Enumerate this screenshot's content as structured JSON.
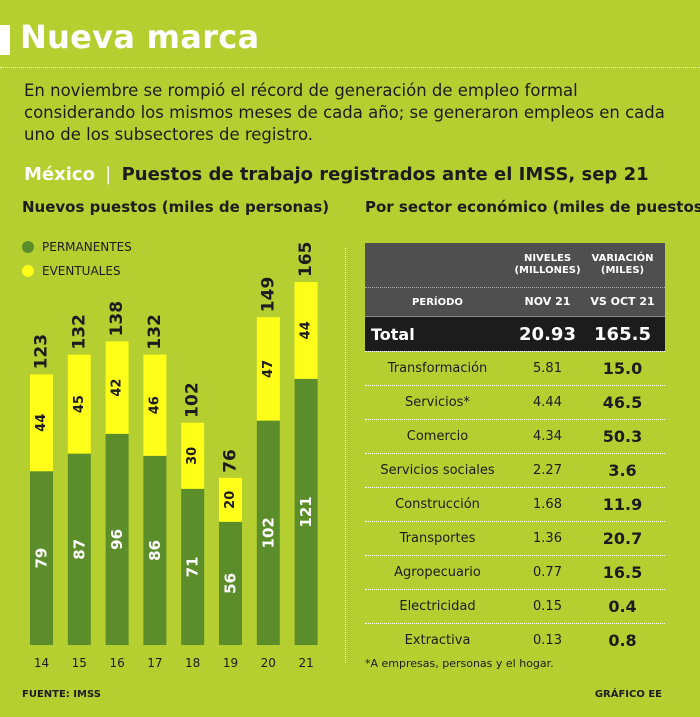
{
  "header": {
    "title": "Nueva marca",
    "intro": "En noviembre se rompió el récord de generación de empleo formal considerando los mismos meses de cada año; se generaron empleos en cada uno de los subsectores de registro."
  },
  "subtitle": {
    "country": "México",
    "separator": "|",
    "text": "Puestos de trabajo registrados ante el IMSS, sep 21"
  },
  "left_heading": "Nuevos puestos (miles de personas)",
  "right_heading": "Por sector económico (miles de puestos)",
  "colors": {
    "background": "#b5cf30",
    "permanentes": "#5c8d2b",
    "eventuales": "#ffff1a",
    "header_dark": "#4f4f4f",
    "total_dark": "#1c1c1c",
    "white": "#ffffff"
  },
  "chart_data": {
    "type": "bar",
    "stacked": true,
    "title": "Nuevos puestos (miles de personas)",
    "categories": [
      "14",
      "15",
      "16",
      "17",
      "18",
      "19",
      "20",
      "21"
    ],
    "series": [
      {
        "name": "PERMANENTES",
        "values": [
          79,
          87,
          96,
          86,
          71,
          56,
          102,
          121
        ]
      },
      {
        "name": "EVENTUALES",
        "values": [
          44,
          45,
          42,
          46,
          30,
          20,
          47,
          44
        ]
      }
    ],
    "totals": [
      123,
      132,
      138,
      132,
      102,
      76,
      149,
      165
    ],
    "ylim": [
      0,
      165
    ],
    "legend_position": "top-left",
    "grid": false
  },
  "table": {
    "head_levels": "NIVELES (MILLONES)",
    "head_variation": "VARIACIÓN (MILES)",
    "period_label": "PERÍODO",
    "period_levels": "NOV 21",
    "period_variation": "VS OCT 21",
    "total": {
      "label": "Total",
      "level": "20.93",
      "variation": "165.5"
    },
    "rows": [
      {
        "label": "Transformación",
        "level": "5.81",
        "variation": "15.0"
      },
      {
        "label": "Servicios*",
        "level": "4.44",
        "variation": "46.5"
      },
      {
        "label": "Comercio",
        "level": "4.34",
        "variation": "50.3"
      },
      {
        "label": "Servicios sociales",
        "level": "2.27",
        "variation": "3.6"
      },
      {
        "label": "Construcción",
        "level": "1.68",
        "variation": "11.9"
      },
      {
        "label": "Transportes",
        "level": "1.36",
        "variation": "20.7"
      },
      {
        "label": "Agropecuario",
        "level": "0.77",
        "variation": "16.5"
      },
      {
        "label": "Electricidad",
        "level": "0.15",
        "variation": "0.4"
      },
      {
        "label": "Extractiva",
        "level": "0.13",
        "variation": "0.8"
      }
    ]
  },
  "footnote": "*A empresas, personas y el hogar.",
  "source": "FUENTE: IMSS",
  "credit": "GRÁFICO EE"
}
